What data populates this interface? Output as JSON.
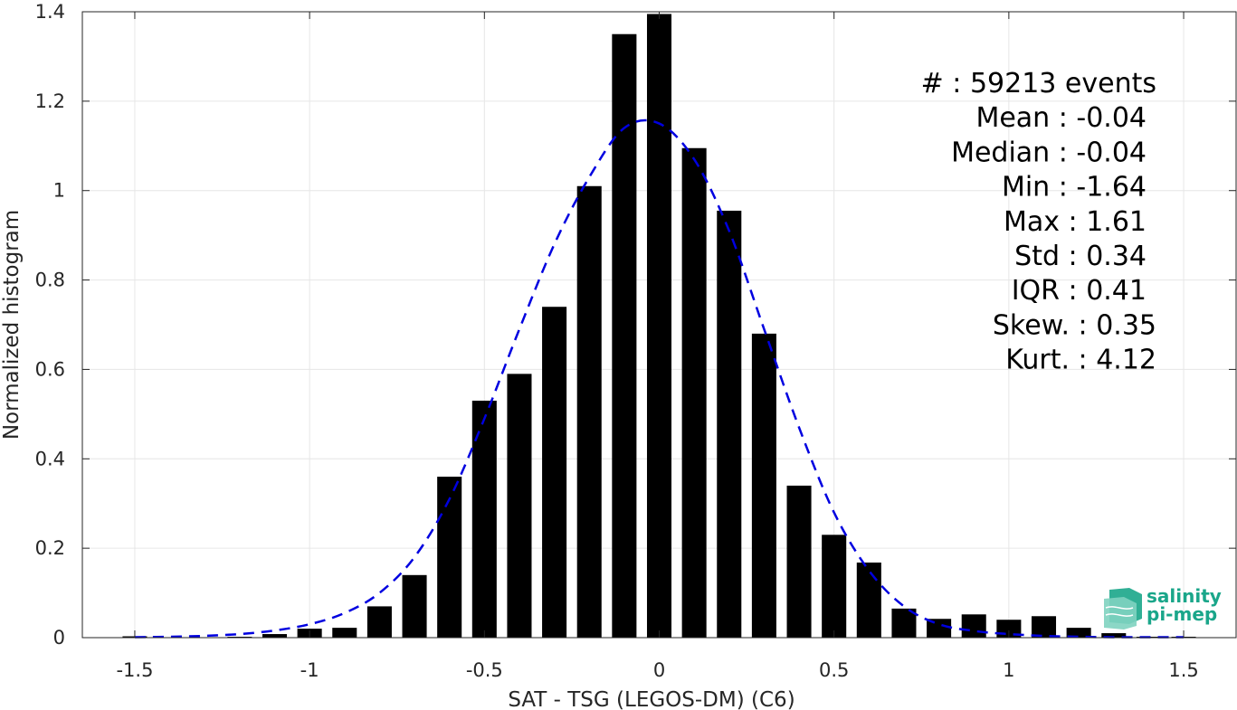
{
  "chart_data": {
    "type": "bar",
    "xlabel": "SAT - TSG (LEGOS-DM) (C6)",
    "ylabel": "Normalized histogram",
    "xlim": [
      -1.65,
      1.65
    ],
    "ylim": [
      0,
      1.4
    ],
    "xticks": [
      -1.5,
      -1,
      -0.5,
      0,
      0.5,
      1,
      1.5
    ],
    "xtick_labels": [
      "-1.5",
      "-1",
      "-0.5",
      "0",
      "0.5",
      "1",
      "1.5"
    ],
    "yticks": [
      0,
      0.2,
      0.4,
      0.6,
      0.8,
      1,
      1.2,
      1.4
    ],
    "ytick_labels": [
      "0",
      "0.2",
      "0.4",
      "0.6",
      "0.8",
      "1",
      "1.2",
      "1.4"
    ],
    "grid": true,
    "bar_width": 0.07,
    "bars": {
      "centers": [
        -1.5,
        -1.4,
        -1.3,
        -1.2,
        -1.1,
        -1.0,
        -0.9,
        -0.8,
        -0.7,
        -0.6,
        -0.5,
        -0.4,
        -0.3,
        -0.2,
        -0.1,
        0.0,
        0.1,
        0.2,
        0.3,
        0.4,
        0.5,
        0.6,
        0.7,
        0.8,
        0.9,
        1.0,
        1.1,
        1.2,
        1.3,
        1.4,
        1.5
      ],
      "values": [
        0.003,
        0.001,
        0.001,
        0.002,
        0.008,
        0.02,
        0.022,
        0.07,
        0.14,
        0.36,
        0.53,
        0.59,
        0.74,
        1.01,
        1.35,
        1.395,
        1.095,
        0.955,
        0.68,
        0.34,
        0.23,
        0.168,
        0.065,
        0.042,
        0.052,
        0.04,
        0.048,
        0.022,
        0.01,
        0.002,
        0.002
      ],
      "color": "#000000"
    },
    "fit_curve": {
      "style": "dashed",
      "color": "#0000e0",
      "x": [
        -1.5,
        -1.4,
        -1.3,
        -1.2,
        -1.1,
        -1.0,
        -0.9,
        -0.8,
        -0.7,
        -0.6,
        -0.5,
        -0.4,
        -0.3,
        -0.2,
        -0.1,
        0.0,
        0.1,
        0.2,
        0.3,
        0.4,
        0.5,
        0.6,
        0.7,
        0.8,
        0.9,
        1.0,
        1.1,
        1.2,
        1.3,
        1.4,
        1.5
      ],
      "y": [
        0.001,
        0.002,
        0.004,
        0.008,
        0.016,
        0.03,
        0.055,
        0.1,
        0.18,
        0.31,
        0.49,
        0.69,
        0.88,
        1.03,
        1.14,
        1.15,
        1.07,
        0.91,
        0.69,
        0.47,
        0.28,
        0.15,
        0.07,
        0.03,
        0.015,
        0.008,
        0.004,
        0.002,
        0.001,
        0.001,
        0.001
      ]
    },
    "stats": [
      {
        "label": "#  : 59213 events"
      },
      {
        "label": "Mean : -0.04"
      },
      {
        "label": "Median : -0.04"
      },
      {
        "label": "Min : -1.64"
      },
      {
        "label": "Max : 1.61"
      },
      {
        "label": "Std : 0.34"
      },
      {
        "label": "IQR : 0.41"
      },
      {
        "label": "Skew. : 0.35"
      },
      {
        "label": "Kurt. : 4.12"
      }
    ]
  },
  "logo": {
    "line1": "salinity",
    "line2": "pi-mep",
    "color": "#1aa68a"
  }
}
